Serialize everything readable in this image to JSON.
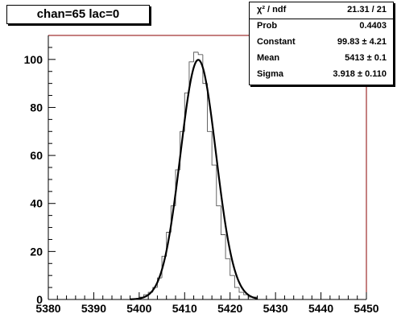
{
  "chart_data": {
    "type": "bar",
    "title": "chan=65 lac=0",
    "xlim": [
      5380,
      5450
    ],
    "ylim": [
      0,
      110
    ],
    "x_ticks": [
      5380,
      5390,
      5400,
      5410,
      5420,
      5430,
      5440,
      5450
    ],
    "y_ticks": [
      0,
      20,
      40,
      60,
      80,
      100
    ],
    "histogram": {
      "bin_width": 1,
      "bin_starts": [
        5400,
        5401,
        5402,
        5403,
        5404,
        5405,
        5406,
        5407,
        5408,
        5409,
        5410,
        5411,
        5412,
        5413,
        5414,
        5415,
        5416,
        5417,
        5418,
        5419,
        5420,
        5421,
        5422,
        5423,
        5424,
        5425
      ],
      "counts": [
        1,
        2,
        3,
        5,
        9,
        18,
        28,
        39,
        54,
        70,
        86,
        99,
        103,
        102,
        90,
        70,
        56,
        39,
        27,
        17,
        10,
        5,
        3,
        2,
        1,
        1
      ]
    },
    "fit": {
      "type": "gaussian",
      "constant": 99.83,
      "mean": 5413,
      "sigma": 3.918
    },
    "stats": [
      {
        "label": "χ² / ndf",
        "value": "21.31 / 21"
      },
      {
        "label": "Prob",
        "value": "0.4403"
      },
      {
        "label": "Constant",
        "value": "99.83 ± 4.21"
      },
      {
        "label": "Mean",
        "value": "5413 ± 0.1"
      },
      {
        "label": "Sigma",
        "value": "3.918 ± 0.110"
      }
    ]
  }
}
